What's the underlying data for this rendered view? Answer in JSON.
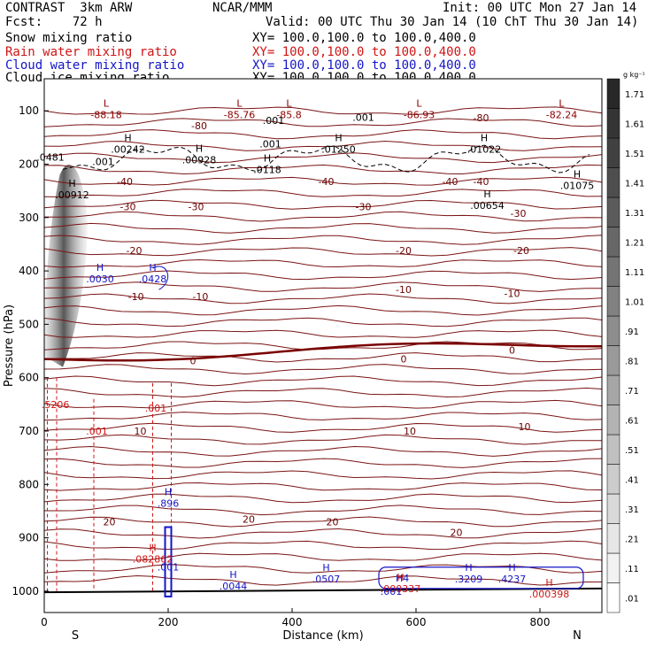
{
  "header": {
    "left1": "CONTRAST  3km ARW",
    "center1": "NCAR/MMM",
    "right1": "Init: 00 UTC Mon 27 Jan 14",
    "left2": "Fcst:    72 h",
    "right2": "Valid: 00 UTC Thu 30 Jan 14 (10 ChT Thu 30 Jan 14)",
    "rows": [
      {
        "label": "Snow mixing ratio",
        "xy": "XY= 100.0,100.0 to 100.0,400.0",
        "color": "#000000"
      },
      {
        "label": "Rain water mixing ratio",
        "xy": "XY= 100.0,100.0 to 100.0,400.0",
        "color": "#d01414"
      },
      {
        "label": "Cloud water mixing ratio",
        "xy": "XY= 100.0,100.0 to 100.0,400.0",
        "color": "#1414c8"
      },
      {
        "label": "Cloud ice mixing ratio",
        "xy": "XY= 100.0,100.0 to 100.0,400.0",
        "color": "#000000"
      }
    ]
  },
  "chart_data": {
    "type": "contour",
    "xlabel": "Distance (km)",
    "ylabel": "Pressure (hPa)",
    "xlim": [
      0,
      900
    ],
    "ylim": [
      1040,
      40
    ],
    "x_ticks": [
      0,
      200,
      400,
      600,
      800
    ],
    "y_ticks": [
      100,
      200,
      300,
      400,
      500,
      600,
      700,
      800,
      900,
      1000
    ],
    "x_end_labels": {
      "left": "S",
      "right": "N"
    },
    "colorbar": {
      "unit": "g kg⁻¹",
      "levels": [
        ".01",
        ".11",
        ".21",
        ".31",
        ".41",
        ".51",
        ".61",
        ".71",
        ".81",
        ".91",
        "1.01",
        "1.11",
        "1.21",
        "1.31",
        "1.41",
        "1.51",
        "1.61",
        "1.71"
      ]
    },
    "temperature_labels": [
      {
        "text": "-80",
        "x": 250,
        "p": 128
      },
      {
        "text": "-80",
        "x": 705,
        "p": 113
      },
      {
        "text": "-40",
        "x": 130,
        "p": 232
      },
      {
        "text": "-40",
        "x": 455,
        "p": 232
      },
      {
        "text": "-40",
        "x": 655,
        "p": 232
      },
      {
        "text": "-40",
        "x": 705,
        "p": 232
      },
      {
        "text": "-30",
        "x": 135,
        "p": 280
      },
      {
        "text": "-30",
        "x": 245,
        "p": 280
      },
      {
        "text": "-30",
        "x": 515,
        "p": 280
      },
      {
        "text": "-30",
        "x": 765,
        "p": 292
      },
      {
        "text": "-20",
        "x": 145,
        "p": 362
      },
      {
        "text": "-20",
        "x": 580,
        "p": 362
      },
      {
        "text": "-20",
        "x": 770,
        "p": 362
      },
      {
        "text": "-10",
        "x": 148,
        "p": 448
      },
      {
        "text": "-10",
        "x": 252,
        "p": 448
      },
      {
        "text": "-10",
        "x": 580,
        "p": 435
      },
      {
        "text": "-10",
        "x": 755,
        "p": 442
      },
      {
        "text": "0",
        "x": 240,
        "p": 568
      },
      {
        "text": "0",
        "x": 580,
        "p": 565
      },
      {
        "text": "0",
        "x": 755,
        "p": 548
      },
      {
        "text": "10",
        "x": 155,
        "p": 700
      },
      {
        "text": "10",
        "x": 590,
        "p": 700
      },
      {
        "text": "10",
        "x": 775,
        "p": 692
      },
      {
        "text": "20",
        "x": 105,
        "p": 870
      },
      {
        "text": "20",
        "x": 330,
        "p": 865
      },
      {
        "text": "20",
        "x": 465,
        "p": 870
      },
      {
        "text": "20",
        "x": 665,
        "p": 890
      }
    ],
    "maxima_labels": [
      {
        "mark": "L",
        "value": "-88.18",
        "x": 100,
        "p": 102,
        "color": "#8b0000"
      },
      {
        "mark": "L",
        "value": "-85.76",
        "x": 315,
        "p": 102,
        "color": "#8b0000"
      },
      {
        "mark": "L",
        "value": "-85.8",
        "x": 395,
        "p": 102,
        "color": "#8b0000"
      },
      {
        "mark": "L",
        "value": "-86.93",
        "x": 605,
        "p": 102,
        "color": "#8b0000"
      },
      {
        "mark": "L",
        "value": "-82.24",
        "x": 835,
        "p": 102,
        "color": "#8b0000"
      },
      {
        "mark": "H",
        "value": ".00242",
        "x": 135,
        "p": 167,
        "color": "#000000"
      },
      {
        "mark": "H",
        "value": ".00928",
        "x": 250,
        "p": 187,
        "color": "#000000"
      },
      {
        "mark": "H",
        "value": ".01250",
        "x": 475,
        "p": 167,
        "color": "#000000"
      },
      {
        "mark": "H",
        "value": ".0118",
        "x": 360,
        "p": 205,
        "color": "#000000"
      },
      {
        "mark": "H",
        "value": ".01022",
        "x": 710,
        "p": 167,
        "color": "#000000"
      },
      {
        "mark": "H",
        "value": ".00912",
        "x": 45,
        "p": 252,
        "color": "#000000"
      },
      {
        "mark": "H",
        "value": ".00654",
        "x": 715,
        "p": 272,
        "color": "#000000"
      },
      {
        "mark": "H",
        "value": ".01075",
        "x": 860,
        "p": 235,
        "color": "#000000"
      },
      {
        "mark": "H",
        "value": ".0030",
        "x": 90,
        "p": 410,
        "color": "#1414c8"
      },
      {
        "mark": "H",
        "value": ".0428",
        "x": 175,
        "p": 410,
        "color": "#1414c8"
      },
      {
        "mark": "H",
        "value": ".896",
        "x": 200,
        "p": 830,
        "color": "#1414c8"
      },
      {
        "mark": "H",
        "value": ".082862",
        "x": 175,
        "p": 935,
        "color": "#d01414"
      },
      {
        "mark": "H",
        "value": ".0044",
        "x": 305,
        "p": 985,
        "color": "#1414c8"
      },
      {
        "mark": "H",
        "value": ".0507",
        "x": 455,
        "p": 972,
        "color": "#1414c8"
      },
      {
        "mark": "H",
        "value": ".000337",
        "x": 575,
        "p": 990,
        "color": "#d01414"
      },
      {
        "mark": "H",
        "value": ".3209",
        "x": 685,
        "p": 972,
        "color": "#1414c8"
      },
      {
        "mark": "H",
        "value": ".4237",
        "x": 755,
        "p": 972,
        "color": "#1414c8"
      },
      {
        "mark": "H",
        "value": ".000398",
        "x": 815,
        "p": 1000,
        "color": "#d01414"
      }
    ],
    "small_labels": [
      {
        "text": ".001",
        "x": 370,
        "p": 118,
        "color": "#000000"
      },
      {
        "text": ".001",
        "x": 515,
        "p": 112,
        "color": "#000000"
      },
      {
        "text": ".001",
        "x": 95,
        "p": 195,
        "color": "#000000"
      },
      {
        "text": ".001",
        "x": 365,
        "p": 162,
        "color": "#000000"
      },
      {
        "text": ".0481",
        "x": 10,
        "p": 187,
        "color": "#000000"
      },
      {
        "text": ".001",
        "x": 180,
        "p": 657,
        "color": "#d01414"
      },
      {
        "text": ".001",
        "x": 85,
        "p": 700,
        "color": "#d01414"
      },
      {
        "text": ".5206",
        "x": 18,
        "p": 650,
        "color": "#d01414"
      },
      {
        "text": ".001",
        "x": 200,
        "p": 955,
        "color": "#1414c8"
      },
      {
        "text": ".001",
        "x": 560,
        "p": 1000,
        "color": "#1414c8"
      },
      {
        "text": "H4",
        "x": 578,
        "p": 975,
        "color": "#1414c8"
      }
    ]
  }
}
